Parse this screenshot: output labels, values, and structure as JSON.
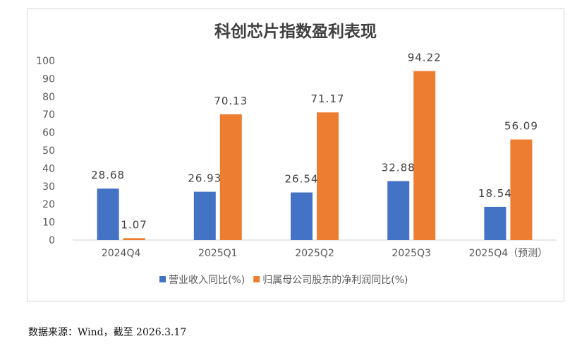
{
  "chart_data": {
    "type": "bar",
    "title": "科创芯片指数盈利表现",
    "categories": [
      "2024Q4",
      "2025Q1",
      "2025Q2",
      "2025Q3",
      "2025Q4（预测）"
    ],
    "series": [
      {
        "name": "营业收入同比(%)",
        "color": "#4472C4",
        "values": [
          28.68,
          26.93,
          26.54,
          32.88,
          18.54
        ],
        "labels": [
          "28.68",
          "26.93",
          "26.54",
          "32.88",
          "18.54"
        ]
      },
      {
        "name": "归属母公司股东的净利润同比(%)",
        "color": "#ED7D31",
        "values": [
          1.07,
          70.13,
          71.17,
          94.22,
          56.09
        ],
        "labels": [
          "1.07",
          "70.13",
          "71.17",
          "94.22",
          "56.09"
        ]
      }
    ],
    "ylim": [
      0,
      100
    ],
    "yticks": [
      "0",
      "10",
      "20",
      "30",
      "40",
      "50",
      "60",
      "70",
      "80",
      "90",
      "100"
    ],
    "grid": false,
    "legend_position": "bottom"
  },
  "source_note": "数据来源：Wind，截至 2026.3.17"
}
